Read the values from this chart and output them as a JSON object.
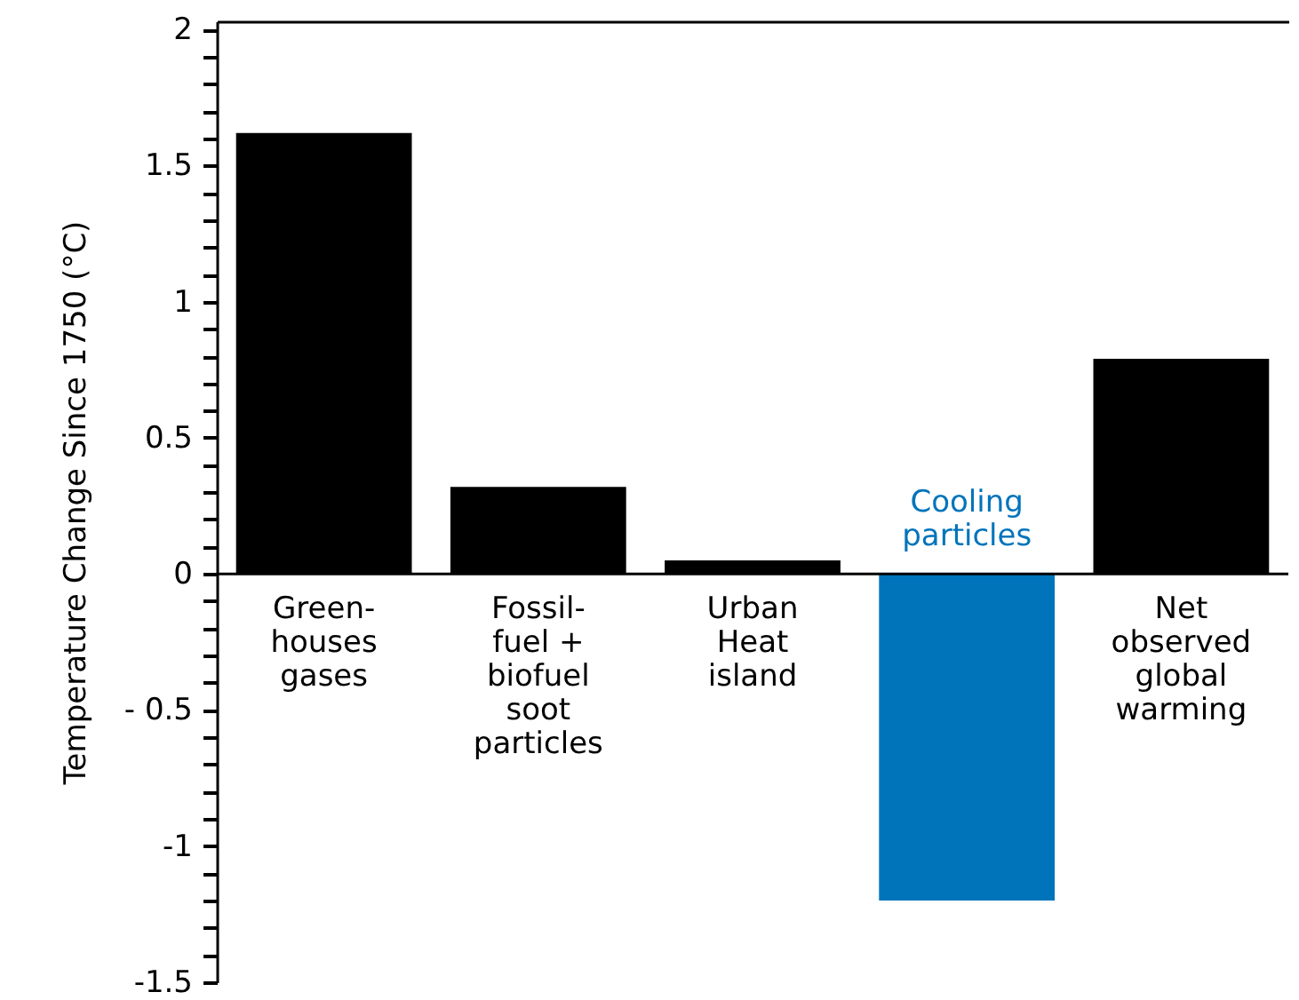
{
  "chart_data": {
    "type": "bar",
    "ylabel": "Temperature Change Since 1750 (°C)",
    "categories": [
      "Green-\nhouses\ngases",
      "Fossil-\nfuel +\nbiofuel\nsoot\nparticles",
      "Urban\nHeat\nisland",
      "Cooling\nparticles",
      "Net\nobserved\nglobal\nwarming"
    ],
    "values": [
      1.62,
      0.32,
      0.05,
      -1.2,
      0.79
    ],
    "colors": [
      "#000000",
      "#000000",
      "#000000",
      "#0074bb",
      "#000000"
    ],
    "ylim": [
      -1.5,
      2.03
    ],
    "yticks": [
      2,
      1.5,
      1,
      0.5,
      0,
      {
        "value": -0.5,
        "label": "- 0.5"
      },
      -1,
      -1.5,
      {
        "value": 1.9,
        "label": null
      },
      {
        "value": 1.8,
        "label": null
      },
      {
        "value": 1.7,
        "label": null
      },
      {
        "value": 1.6,
        "label": null
      },
      {
        "value": 1.4,
        "label": null
      },
      {
        "value": 1.3,
        "label": null
      },
      {
        "value": 1.2,
        "label": null
      },
      {
        "value": 1.1,
        "label": null
      },
      {
        "value": 0.9,
        "label": null
      },
      {
        "value": 0.8,
        "label": null
      },
      {
        "value": 0.7,
        "label": null
      },
      {
        "value": 0.6,
        "label": null
      },
      {
        "value": 0.4,
        "label": null
      },
      {
        "value": 0.3,
        "label": null
      },
      {
        "value": 0.2,
        "label": null
      },
      {
        "value": 0.1,
        "label": null
      },
      {
        "value": -0.1,
        "label": null
      },
      {
        "value": -0.2,
        "label": null
      },
      {
        "value": -0.3,
        "label": null
      },
      {
        "value": -0.4,
        "label": null
      },
      {
        "value": -0.6,
        "label": null
      },
      {
        "value": -0.7,
        "label": null
      },
      {
        "value": -0.8,
        "label": null
      },
      {
        "value": -0.9,
        "label": null
      },
      {
        "value": -1.1,
        "label": null
      },
      {
        "value": -1.2,
        "label": null
      },
      {
        "value": -1.3,
        "label": null
      },
      {
        "value": -1.4,
        "label": null
      }
    ],
    "grid": false
  }
}
